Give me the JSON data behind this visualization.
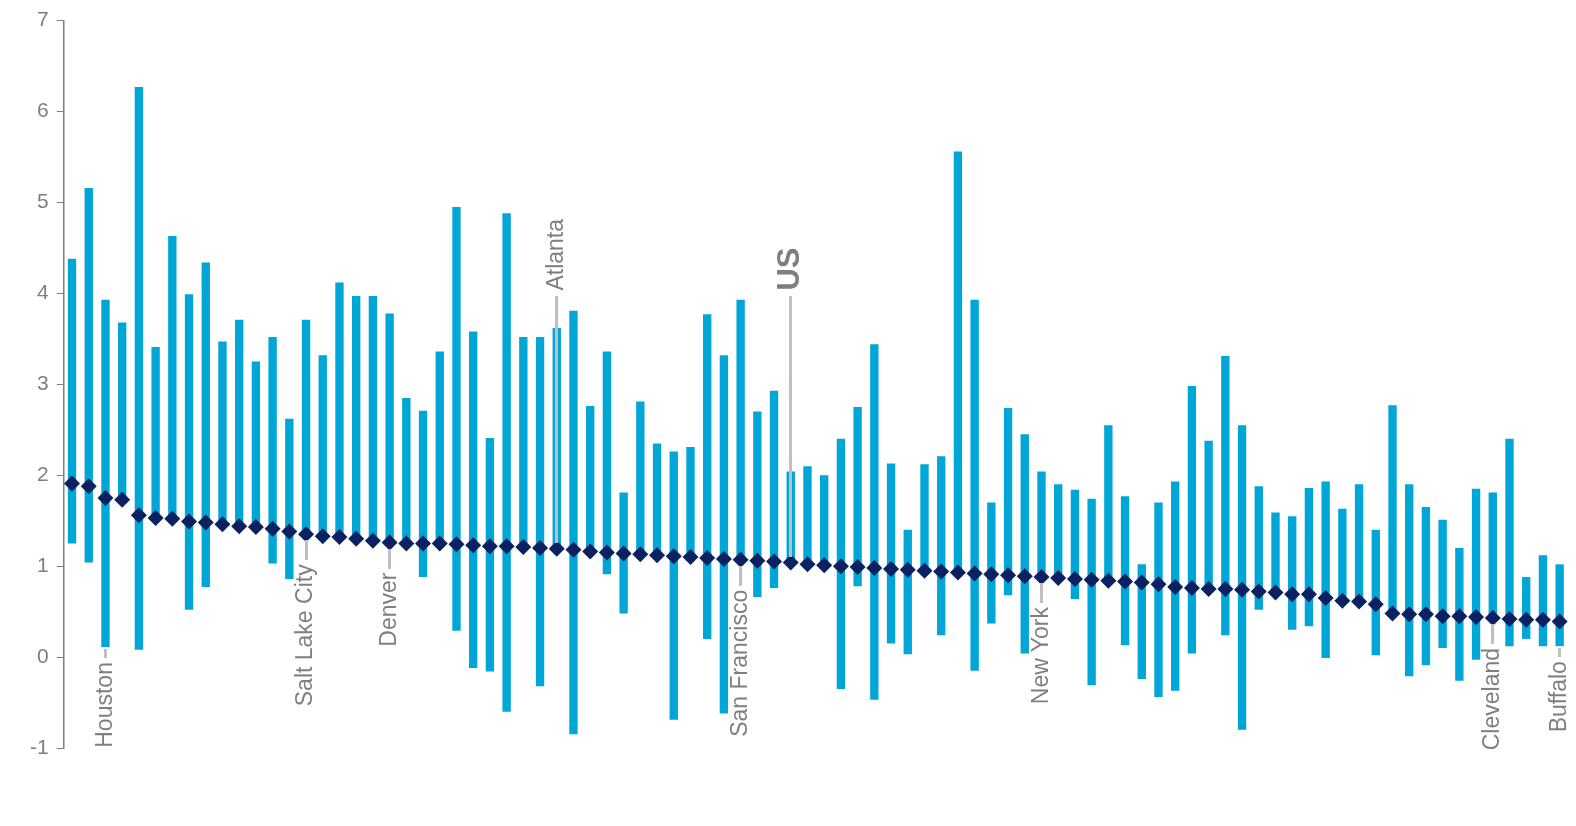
{
  "chart_data": {
    "type": "bar",
    "categories": [
      null,
      null,
      "Houston",
      null,
      null,
      null,
      null,
      null,
      null,
      null,
      null,
      null,
      null,
      null,
      "Salt Lake City",
      null,
      null,
      null,
      null,
      "Denver",
      null,
      null,
      null,
      null,
      null,
      null,
      null,
      null,
      null,
      "Atlanta",
      null,
      null,
      null,
      null,
      null,
      null,
      null,
      null,
      null,
      null,
      "San Francisco",
      null,
      null,
      "US",
      null,
      null,
      null,
      null,
      null,
      null,
      null,
      null,
      null,
      null,
      null,
      null,
      null,
      null,
      "New York",
      null,
      null,
      null,
      null,
      null,
      null,
      null,
      null,
      null,
      null,
      null,
      null,
      null,
      null,
      null,
      null,
      null,
      null,
      null,
      null,
      null,
      null,
      null,
      null,
      null,
      null,
      "Cleveland",
      null,
      null,
      null,
      "Buffalo"
    ],
    "series": [
      {
        "color": "#00a6d6",
        "base": [
          1.25,
          1.04,
          0.11,
          1.73,
          0.08,
          1.53,
          1.52,
          0.52,
          0.77,
          1.46,
          1.44,
          1.43,
          1.03,
          0.86,
          1.35,
          1.33,
          1.32,
          1.3,
          1.28,
          1.26,
          1.25,
          0.88,
          1.25,
          0.29,
          -0.12,
          -0.16,
          -0.6,
          1.21,
          -0.32,
          1.19,
          -0.85,
          1.16,
          0.91,
          0.48,
          1.13,
          1.12,
          -0.69,
          1.1,
          0.2,
          -0.62,
          1.07,
          0.66,
          0.76,
          1.04,
          1.02,
          1.01,
          -0.35,
          0.78,
          -0.47,
          0.15,
          0.03,
          0.95,
          0.24,
          0.93,
          -0.15,
          0.37,
          0.68,
          0.04,
          0.88,
          0.87,
          0.64,
          -0.31,
          0.84,
          0.13,
          -0.24,
          -0.44,
          -0.37,
          0.04,
          0.75,
          0.24,
          -0.8,
          0.52,
          0.71,
          0.3,
          0.34,
          -0.01,
          0.62,
          0.61,
          0.02,
          0.48,
          -0.21,
          -0.09,
          0.1,
          -0.26,
          -0.03,
          0.43,
          0.12,
          0.2,
          0.12,
          0.12
        ],
        "values": [
          3.13,
          4.12,
          3.82,
          1.95,
          6.19,
          1.88,
          3.11,
          3.47,
          3.57,
          2.01,
          2.27,
          1.82,
          2.49,
          1.76,
          2.36,
          1.99,
          2.8,
          2.67,
          2.69,
          2.52,
          1.6,
          1.83,
          2.11,
          4.66,
          3.7,
          2.57,
          5.48,
          2.31,
          3.84,
          2.43,
          4.66,
          1.6,
          2.45,
          1.33,
          1.68,
          1.23,
          2.95,
          1.21,
          3.57,
          3.94,
          2.86,
          2.04,
          2.17,
          1.0,
          1.08,
          0.99,
          2.75,
          1.97,
          3.91,
          1.98,
          1.37,
          1.17,
          1.97,
          4.63,
          4.08,
          1.33,
          2.06,
          2.41,
          1.16,
          1.03,
          1.2,
          2.05,
          1.71,
          1.64,
          1.26,
          2.14,
          2.3,
          2.94,
          1.63,
          3.07,
          3.35,
          1.36,
          0.88,
          1.25,
          1.52,
          1.94,
          1.01,
          1.29,
          1.38,
          2.29,
          2.11,
          1.74,
          1.41,
          1.46,
          1.88,
          1.38,
          2.28,
          0.68,
          1.0,
          0.9
        ]
      },
      {
        "type": "scatter",
        "color": "#0b2161",
        "values": [
          1.91,
          1.88,
          1.75,
          1.73,
          1.56,
          1.53,
          1.52,
          1.49,
          1.48,
          1.46,
          1.44,
          1.43,
          1.41,
          1.38,
          1.35,
          1.33,
          1.32,
          1.3,
          1.28,
          1.26,
          1.25,
          1.25,
          1.25,
          1.24,
          1.23,
          1.22,
          1.22,
          1.21,
          1.2,
          1.19,
          1.18,
          1.16,
          1.15,
          1.14,
          1.13,
          1.12,
          1.11,
          1.1,
          1.09,
          1.08,
          1.07,
          1.06,
          1.05,
          1.04,
          1.02,
          1.01,
          1.0,
          0.99,
          0.98,
          0.97,
          0.96,
          0.95,
          0.94,
          0.93,
          0.92,
          0.91,
          0.9,
          0.89,
          0.88,
          0.87,
          0.86,
          0.85,
          0.84,
          0.83,
          0.82,
          0.8,
          0.77,
          0.76,
          0.75,
          0.75,
          0.74,
          0.72,
          0.71,
          0.69,
          0.69,
          0.65,
          0.62,
          0.61,
          0.58,
          0.48,
          0.47,
          0.47,
          0.45,
          0.45,
          0.44,
          0.43,
          0.42,
          0.41,
          0.41,
          0.39
        ]
      }
    ],
    "ylim": [
      -1,
      7
    ],
    "yticks": [
      -1,
      0,
      1,
      2,
      3,
      4,
      5,
      6,
      7
    ],
    "marker": "diamond",
    "legend": false
  }
}
